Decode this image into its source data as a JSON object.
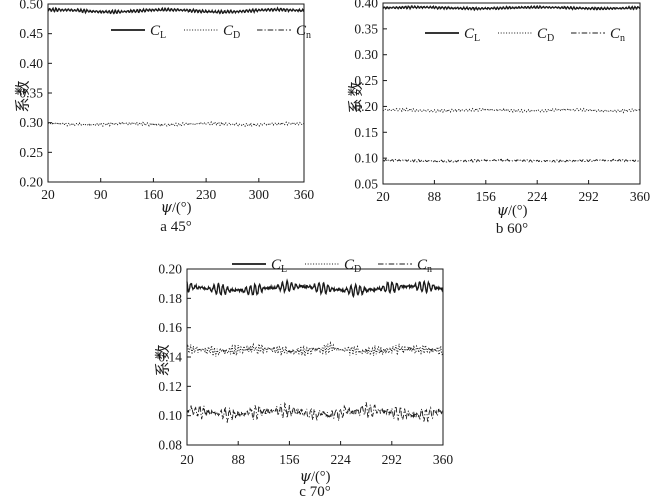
{
  "figure": {
    "background": "#ffffff",
    "ink_color": "#1a1a1a",
    "ylabel": "系数",
    "xlabel_symbol": "ψ",
    "xlabel_rest": "/(°)",
    "legend": [
      {
        "base": "C",
        "sub": "L",
        "style": "solid"
      },
      {
        "base": "C",
        "sub": "D",
        "style": "dotted"
      },
      {
        "base": "C",
        "sub": "n",
        "style": "dashdot"
      }
    ]
  },
  "chart_data": [
    {
      "type": "line",
      "id": "a",
      "caption": "a 45°",
      "xlabel": "ψ/(°)",
      "ylabel": "系数",
      "xlim": [
        20,
        360
      ],
      "xticks": [
        "20",
        "90",
        "160",
        "230",
        "300",
        "360"
      ],
      "ylim": [
        0.2,
        0.5
      ],
      "yticks": [
        "0.20",
        "0.25",
        "0.30",
        "0.35",
        "0.40",
        "0.45",
        "0.50"
      ],
      "grid": false,
      "legend_position": "inside-top-right",
      "series": [
        {
          "name": "C_L",
          "style": "solid",
          "mean": 0.4885,
          "value_range": [
            0.483,
            0.495
          ],
          "amplitude": 0.0024,
          "cycles": 82,
          "noise": 0.0008,
          "drift": 0.0018,
          "drift_cycles": 2.3,
          "mod_depth": 0.25,
          "mod_cycles": 9,
          "seed": 101
        },
        {
          "name": "C_D",
          "style": "dotted",
          "mean": 0.2975,
          "value_range": [
            0.292,
            0.303
          ],
          "amplitude": 0.002,
          "cycles": 72,
          "noise": 0.001,
          "drift": 0.001,
          "drift_cycles": 3.2,
          "mod_depth": 0.3,
          "mod_cycles": 7,
          "seed": 202
        },
        {
          "name": "C_n",
          "style": "dashdot",
          "mean": 0.1982,
          "value_range": [
            0.195,
            0.201
          ],
          "amplitude": 0.0013,
          "cycles": 76,
          "noise": 0.0006,
          "drift": 0.0006,
          "drift_cycles": 2.6,
          "mod_depth": 0.3,
          "mod_cycles": 8,
          "seed": 303
        }
      ]
    },
    {
      "type": "line",
      "id": "b",
      "caption": "b 60°",
      "xlabel": "ψ/(°)",
      "ylabel": "系数",
      "xlim": [
        20,
        360
      ],
      "xticks": [
        "20",
        "88",
        "156",
        "224",
        "292",
        "360"
      ],
      "ylim": [
        0.05,
        0.4
      ],
      "yticks": [
        "0.05",
        "0.10",
        "0.15",
        "0.20",
        "0.25",
        "0.30",
        "0.35",
        "0.40"
      ],
      "grid": false,
      "legend_position": "inside-top-right",
      "series": [
        {
          "name": "C_L",
          "style": "solid",
          "mean": 0.3905,
          "value_range": [
            0.384,
            0.397
          ],
          "amplitude": 0.0022,
          "cycles": 84,
          "noise": 0.0008,
          "drift": 0.0012,
          "drift_cycles": 2.1,
          "mod_depth": 0.25,
          "mod_cycles": 8,
          "seed": 404
        },
        {
          "name": "C_D",
          "style": "dotted",
          "mean": 0.1925,
          "value_range": [
            0.186,
            0.199
          ],
          "amplitude": 0.0024,
          "cycles": 74,
          "noise": 0.001,
          "drift": 0.0012,
          "drift_cycles": 3.0,
          "mod_depth": 0.3,
          "mod_cycles": 7,
          "seed": 505
        },
        {
          "name": "C_n",
          "style": "dashdot",
          "mean": 0.095,
          "value_range": [
            0.089,
            0.101
          ],
          "amplitude": 0.0018,
          "cycles": 78,
          "noise": 0.0008,
          "drift": 0.0008,
          "drift_cycles": 2.4,
          "mod_depth": 0.3,
          "mod_cycles": 9,
          "seed": 606
        }
      ]
    },
    {
      "type": "line",
      "id": "c",
      "caption": "c 70°",
      "xlabel": "ψ/(°)",
      "ylabel": "系数",
      "xlim": [
        20,
        360
      ],
      "xticks": [
        "20",
        "88",
        "156",
        "224",
        "292",
        "360"
      ],
      "ylim": [
        0.08,
        0.2
      ],
      "yticks": [
        "0.08",
        "0.10",
        "0.12",
        "0.14",
        "0.16",
        "0.18",
        "0.20"
      ],
      "grid": false,
      "legend_position": "above-top-right",
      "series": [
        {
          "name": "C_L",
          "style": "solid",
          "mean": 0.1868,
          "value_range": [
            0.181,
            0.195
          ],
          "amplitude": 0.0036,
          "cycles": 56,
          "noise": 0.0008,
          "drift": 0.0014,
          "drift_cycles": 2.2,
          "mod_depth": 0.55,
          "mod_cycles": 7.5,
          "seed": 707
        },
        {
          "name": "C_D",
          "style": "dotted",
          "mean": 0.1448,
          "value_range": [
            0.138,
            0.152
          ],
          "amplitude": 0.0026,
          "cycles": 86,
          "noise": 0.0016,
          "drift": 0.0008,
          "drift_cycles": 3.4,
          "mod_depth": 0.4,
          "mod_cycles": 11,
          "seed": 808
        },
        {
          "name": "C_n",
          "style": "dashdot",
          "mean": 0.1022,
          "value_range": [
            0.091,
            0.112
          ],
          "amplitude": 0.004,
          "cycles": 60,
          "noise": 0.002,
          "drift": 0.0014,
          "drift_cycles": 2.8,
          "mod_depth": 0.5,
          "mod_cycles": 9,
          "seed": 909
        }
      ]
    }
  ]
}
